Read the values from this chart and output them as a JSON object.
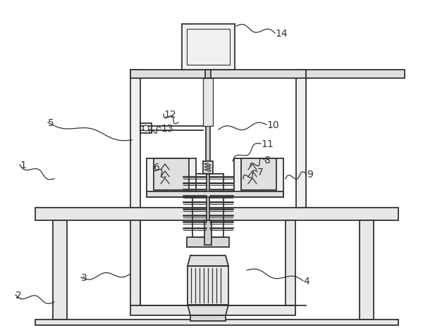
{
  "bg_color": "#ffffff",
  "line_color": "#333333",
  "label_color": "#333333",
  "figsize": [
    6.0,
    4.77
  ],
  "dpi": 100
}
